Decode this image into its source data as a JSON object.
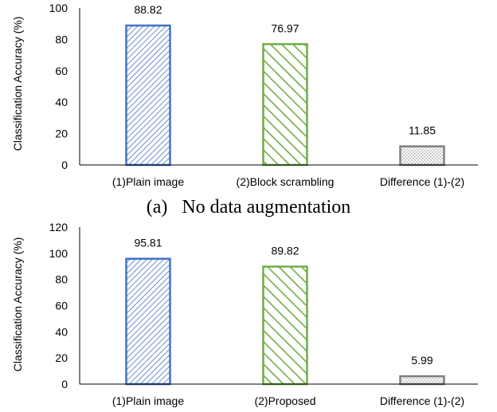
{
  "chart_data": [
    {
      "type": "bar",
      "title": "",
      "caption": "(a)   No data augmentation",
      "xlabel": "",
      "ylabel": "Classification Accuracy (%)",
      "ylim": [
        0,
        100
      ],
      "yticks": [
        0,
        20,
        40,
        60,
        80,
        100
      ],
      "categories": [
        "(1)Plain image",
        "(2)Block scrambling",
        "Difference (1)-(2)"
      ],
      "values": [
        88.82,
        76.97,
        11.85
      ],
      "value_labels": [
        "88.82",
        "76.97",
        "11.85"
      ],
      "bar_styles": [
        {
          "pattern": "dense-diagonal-hatch",
          "color": "#4472C4"
        },
        {
          "pattern": "wide-diagonal-hatch",
          "color": "#70AD47"
        },
        {
          "pattern": "dots",
          "color": "#7F7F7F"
        }
      ],
      "grid": false
    },
    {
      "type": "bar",
      "title": "",
      "xlabel": "",
      "ylabel": "Classification Accuracy (%)",
      "ylim": [
        0,
        120
      ],
      "yticks": [
        0,
        20,
        40,
        60,
        80,
        100,
        120
      ],
      "categories": [
        "(1)Plain image",
        "(2)Proposed",
        "Difference (1)-(2)"
      ],
      "values": [
        95.81,
        89.82,
        5.99
      ],
      "value_labels": [
        "95.81",
        "89.82",
        "5.99"
      ],
      "bar_styles": [
        {
          "pattern": "dense-diagonal-hatch",
          "color": "#4472C4"
        },
        {
          "pattern": "wide-diagonal-hatch",
          "color": "#70AD47"
        },
        {
          "pattern": "dots",
          "color": "#7F7F7F"
        }
      ],
      "grid": false
    }
  ]
}
